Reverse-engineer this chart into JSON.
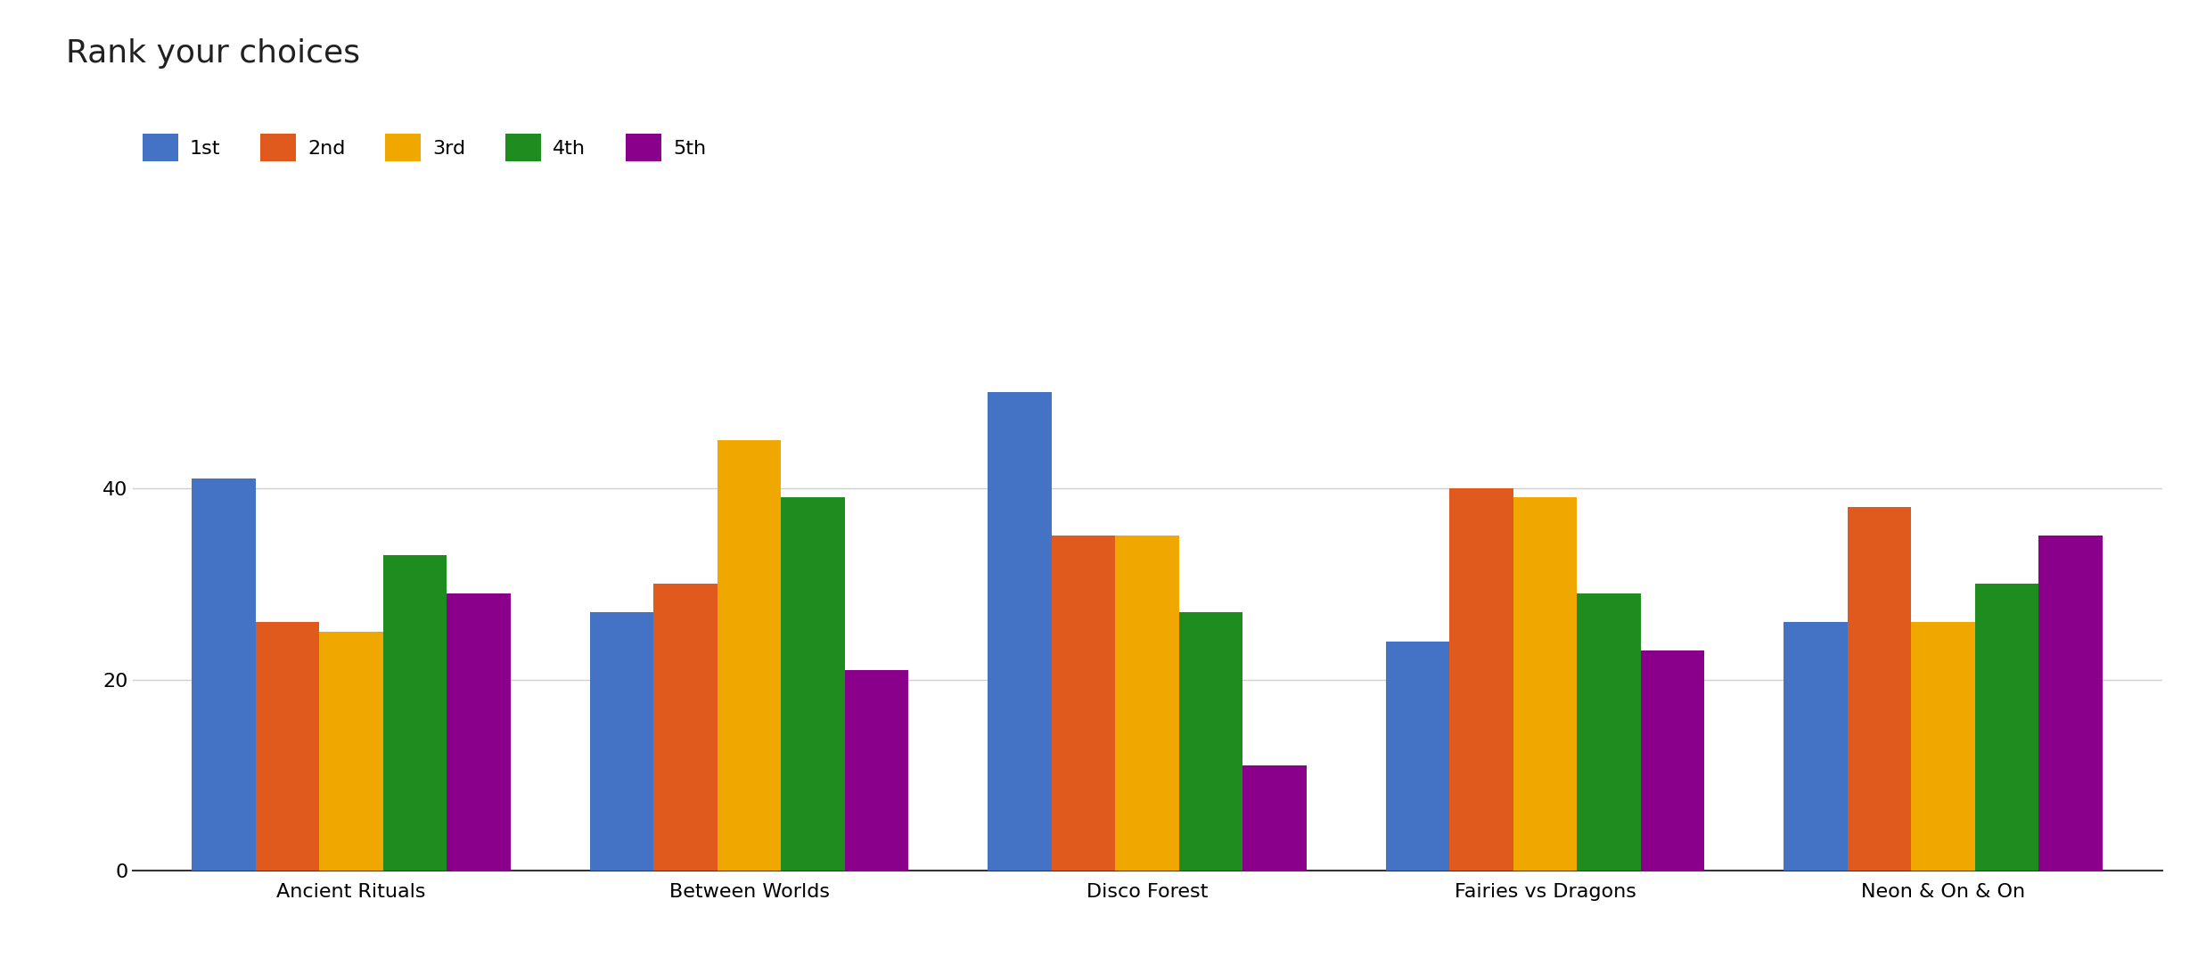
{
  "title": "Rank your choices",
  "categories": [
    "Ancient Rituals",
    "Between Worlds",
    "Disco Forest",
    "Fairies vs Dragons",
    "Neon & On & On"
  ],
  "series": [
    {
      "label": "1st",
      "color": "#4472c4",
      "values": [
        41,
        27,
        50,
        24,
        26
      ]
    },
    {
      "label": "2nd",
      "color": "#e05a1e",
      "values": [
        26,
        30,
        35,
        40,
        38
      ]
    },
    {
      "label": "3rd",
      "color": "#f0a800",
      "values": [
        25,
        45,
        35,
        39,
        26
      ]
    },
    {
      "label": "4th",
      "color": "#1e8c1e",
      "values": [
        33,
        39,
        27,
        29,
        30
      ]
    },
    {
      "label": "5th",
      "color": "#8b008b",
      "values": [
        29,
        21,
        11,
        23,
        35
      ]
    }
  ],
  "ylim": [
    0,
    55
  ],
  "yticks": [
    0,
    20,
    40
  ],
  "background_color": "#ffffff",
  "title_fontsize": 26,
  "legend_fontsize": 16,
  "tick_fontsize": 16,
  "bar_width": 0.16,
  "grid_color": "#d0d0d0"
}
